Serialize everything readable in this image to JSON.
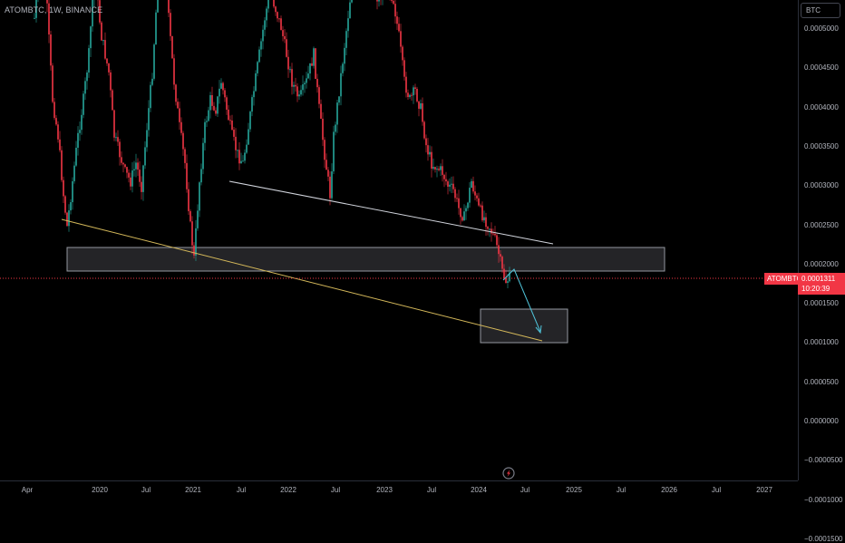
{
  "header": {
    "symbol_title": "ATOMBTC, 1W, BINANCE"
  },
  "price_axis": {
    "currency_button": "BTC",
    "labels": [
      "0.0005000",
      "0.0004500",
      "0.0004000",
      "0.0003500",
      "0.0003000",
      "0.0002500",
      "0.0002000",
      "0.0001500",
      "0.0001000",
      "0.0000500",
      "0.0000000",
      "−0.0000500",
      "−0.0001000",
      "−0.0001500"
    ]
  },
  "time_axis": {
    "labels": [
      "Apr",
      "2020",
      "Jul",
      "2021",
      "Jul",
      "2022",
      "Jul",
      "2023",
      "Jul",
      "2024",
      "Jul",
      "2025",
      "Jul",
      "2026",
      "Jul",
      "2027"
    ]
  },
  "current_price": {
    "symbol": "ATOMBTC",
    "price": "0.0001311",
    "countdown": "10:20:39"
  },
  "colors": {
    "up": "#26a69a",
    "down": "#f23645",
    "trendline_white": "#d1d4dc",
    "trendline_yellow": "#d4b85a",
    "projection_arrow": "#4fc3d9",
    "zone_fill": "#2a2a2e"
  },
  "chart_data": {
    "type": "candlestick",
    "symbol": "ATOMBTC",
    "interval": "1W",
    "exchange": "BINANCE",
    "ylim": [
      -0.000165,
      0.00054
    ]
  }
}
